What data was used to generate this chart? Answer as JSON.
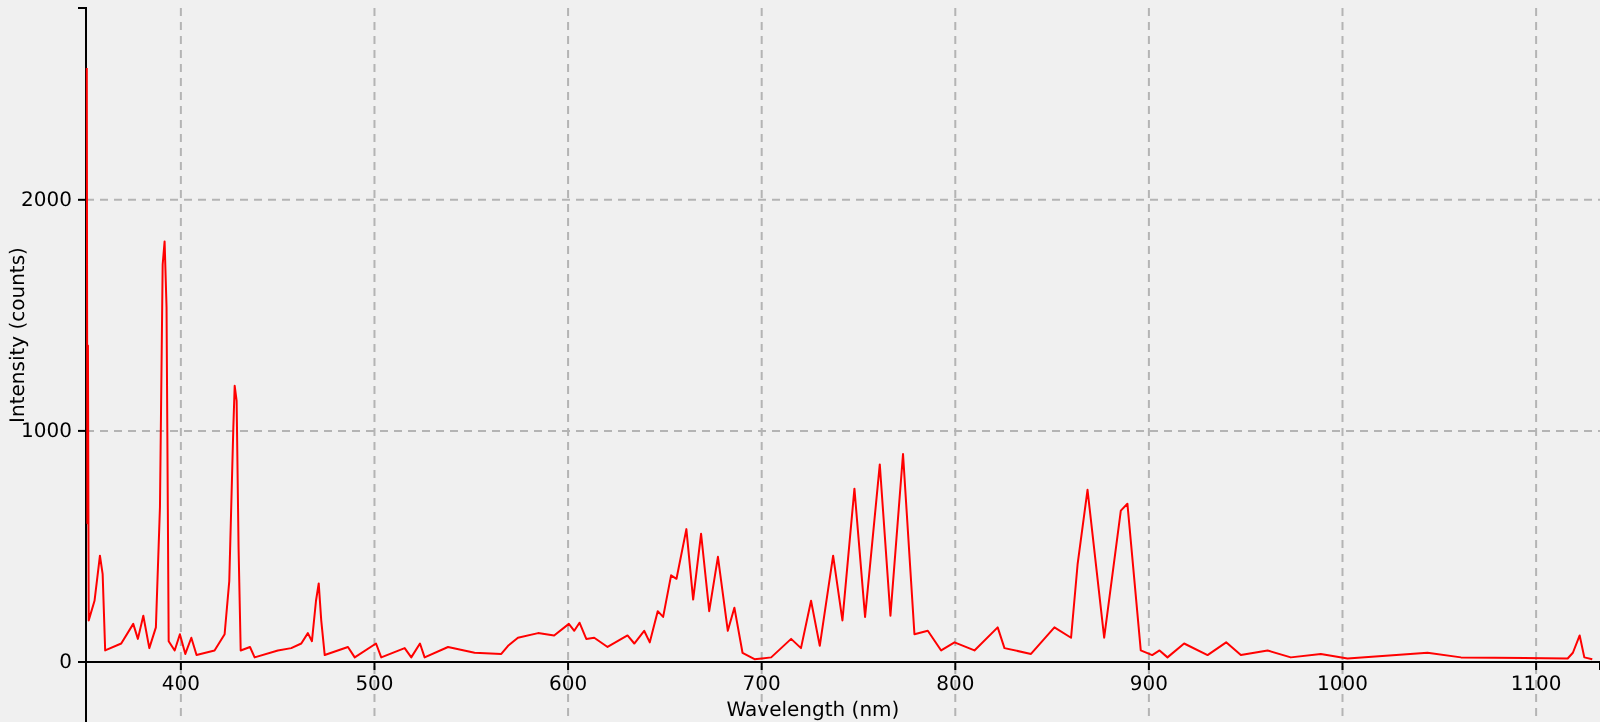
{
  "chart_data": {
    "type": "line",
    "xlabel": "Wavelength (nm)",
    "ylabel": "Intensity (counts)",
    "xlim": [
      351,
      1133
    ],
    "ylim": [
      0,
      2830
    ],
    "xticks": [
      400,
      500,
      600,
      700,
      800,
      900,
      1000,
      1100
    ],
    "yticks": [
      0,
      1000,
      2000
    ],
    "grid": true,
    "line_style": "solid",
    "marker": "none",
    "series": [
      {
        "color": "#ff0000",
        "x": [
          351.4,
          351.7,
          352.0,
          352.4,
          355.4,
          358.2,
          359.6,
          360.9,
          369.2,
          375.4,
          377.8,
          380.6,
          383.7,
          387.1,
          389.2,
          390.6,
          391.6,
          392.6,
          393.7,
          396.8,
          399.5,
          402.3,
          405.4,
          408.1,
          417.4,
          422.6,
          425.0,
          427.1,
          427.8,
          428.8,
          429.8,
          430.9,
          435.7,
          438.1,
          450.1,
          457.0,
          462.2,
          465.6,
          467.7,
          469.8,
          471.2,
          472.5,
          474.3,
          486.3,
          489.8,
          500.8,
          503.5,
          515.6,
          519.0,
          523.5,
          525.9,
          538.0,
          551.7,
          565.5,
          569.0,
          574.1,
          584.5,
          592.8,
          600.4,
          603.2,
          605.9,
          609.4,
          613.5,
          620.4,
          630.7,
          634.2,
          639.3,
          642.2,
          646.3,
          649.1,
          653.2,
          656.0,
          661.1,
          664.6,
          668.7,
          672.9,
          677.4,
          682.5,
          685.9,
          690.1,
          696.3,
          704.9,
          715.2,
          720.3,
          725.5,
          730.0,
          736.9,
          741.7,
          747.9,
          753.4,
          761.0,
          766.5,
          773.0,
          778.9,
          785.8,
          792.7,
          799.6,
          809.9,
          821.9,
          825.4,
          839.1,
          851.2,
          859.8,
          863.2,
          868.3,
          876.9,
          885.5,
          888.9,
          895.8,
          901.7,
          905.5,
          909.6,
          918.2,
          930.3,
          939.9,
          947.5,
          961.3,
          973.3,
          988.8,
          1002.6,
          1043.9,
          1061.2,
          1116.3,
          1119.0,
          1122.5,
          1124.9,
          1129.0
        ],
        "values": [
          2570,
          600,
          1370,
          180,
          265,
          460,
          380,
          50,
          80,
          165,
          100,
          200,
          60,
          150,
          670,
          1720,
          1820,
          1535,
          90,
          50,
          120,
          35,
          105,
          30,
          50,
          120,
          350,
          1015,
          1195,
          1130,
          495,
          50,
          65,
          20,
          50,
          60,
          80,
          125,
          90,
          265,
          340,
          180,
          30,
          65,
          20,
          80,
          20,
          60,
          20,
          80,
          20,
          65,
          40,
          35,
          70,
          105,
          125,
          115,
          165,
          135,
          170,
          100,
          105,
          65,
          115,
          80,
          135,
          85,
          220,
          195,
          375,
          360,
          575,
          270,
          555,
          220,
          455,
          135,
          235,
          40,
          12,
          20,
          100,
          60,
          265,
          70,
          460,
          180,
          750,
          195,
          855,
          200,
          900,
          120,
          135,
          50,
          85,
          50,
          150,
          60,
          35,
          150,
          105,
          425,
          745,
          105,
          655,
          685,
          50,
          30,
          50,
          20,
          80,
          30,
          85,
          30,
          50,
          20,
          35,
          15,
          40,
          20,
          15,
          40,
          115,
          20,
          12
        ]
      }
    ]
  }
}
